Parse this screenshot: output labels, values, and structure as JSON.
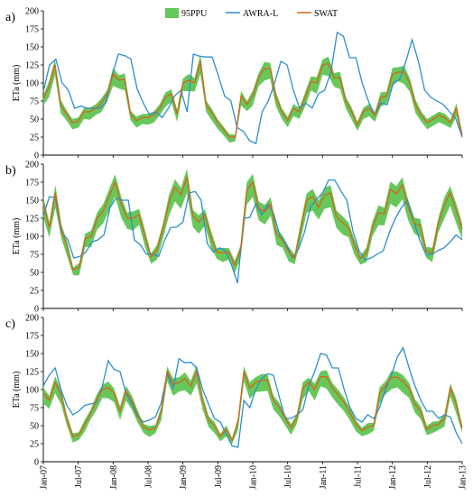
{
  "chart_data": {
    "type": "line",
    "colors": {
      "band": "#66c85a",
      "awra": "#2a8fd0",
      "swat": "#d9631a"
    },
    "legend": {
      "placement": "top-center",
      "entries": [
        {
          "key": "band",
          "label": "95PPU"
        },
        {
          "key": "awra",
          "label": "AWRA-L"
        },
        {
          "key": "swat",
          "label": "SWAT"
        }
      ]
    },
    "x_ticks": [
      "Jan-07",
      "Jul-07",
      "Jan-08",
      "Jul-08",
      "Jan-09",
      "Jul-09",
      "Jan-10",
      "Jul-10",
      "Jan-11",
      "Jul-11",
      "Jan-12",
      "Jul-12",
      "Jan-13"
    ],
    "y_ticks": [
      "0",
      "25",
      "50",
      "75",
      "100",
      "125",
      "150",
      "175",
      "200"
    ],
    "ylim": [
      0,
      200
    ],
    "panels": [
      {
        "label": "a)",
        "ylabel": "ETa (mm)",
        "awra": [
          88,
          125,
          133,
          100,
          90,
          65,
          68,
          65,
          65,
          65,
          73,
          110,
          140,
          138,
          133,
          92,
          72,
          56,
          60,
          52,
          65,
          82,
          90,
          60,
          140,
          137,
          136,
          136,
          110,
          82,
          75,
          38,
          33,
          20,
          16,
          60,
          75,
          100,
          130,
          125,
          90,
          65,
          72,
          65,
          85,
          90,
          115,
          170,
          165,
          135,
          135,
          100,
          75,
          55,
          72,
          70,
          100,
          105,
          130,
          160,
          130,
          90,
          80,
          75,
          70,
          60,
          50,
          25
        ],
        "swat": [
          78,
          95,
          125,
          70,
          57,
          45,
          47,
          60,
          60,
          65,
          72,
          85,
          112,
          104,
          105,
          57,
          48,
          52,
          52,
          55,
          65,
          80,
          85,
          57,
          100,
          104,
          100,
          130,
          70,
          58,
          45,
          35,
          25,
          25,
          82,
          70,
          82,
          107,
          120,
          120,
          80,
          60,
          48,
          65,
          60,
          80,
          102,
          100,
          125,
          127,
          107,
          107,
          75,
          60,
          42,
          60,
          65,
          55,
          80,
          82,
          112,
          115,
          115,
          100,
          70,
          55,
          45,
          50,
          55,
          52,
          45,
          65,
          28
        ]
      },
      {
        "label": "b)",
        "ylabel": "ETa (mm)",
        "awra": [
          128,
          155,
          153,
          105,
          96,
          70,
          72,
          78,
          92,
          95,
          102,
          140,
          153,
          150,
          150,
          95,
          88,
          75,
          76,
          72,
          95,
          112,
          113,
          120,
          160,
          162,
          150,
          90,
          78,
          84,
          80,
          60,
          35,
          125,
          126,
          145,
          130,
          144,
          130,
          100,
          90,
          70,
          81,
          105,
          140,
          151,
          160,
          178,
          178,
          163,
          150,
          107,
          80,
          67,
          70,
          75,
          80,
          105,
          125,
          140,
          150,
          122,
          95,
          75,
          75,
          80,
          84,
          92,
          102,
          95
        ],
        "swat": [
          145,
          112,
          160,
          110,
          85,
          53,
          57,
          97,
          100,
          125,
          135,
          155,
          175,
          145,
          125,
          125,
          130,
          100,
          71,
          81,
          111,
          147,
          168,
          157,
          182,
          128,
          120,
          130,
          100,
          78,
          77,
          78,
          60,
          82,
          164,
          175,
          139,
          134,
          145,
          103,
          95,
          78,
          70,
          110,
          150,
          155,
          140,
          157,
          160,
          127,
          119,
          112,
          88,
          69,
          77,
          113,
          133,
          131,
          165,
          159,
          171,
          140,
          118,
          115,
          80,
          77,
          118,
          143,
          160,
          136,
          110
        ]
      },
      {
        "label": "c)",
        "ylabel": "ETa (mm)",
        "awra": [
          105,
          120,
          130,
          100,
          78,
          65,
          70,
          78,
          80,
          82,
          105,
          140,
          128,
          125,
          95,
          80,
          62,
          55,
          58,
          62,
          82,
          122,
          102,
          143,
          137,
          138,
          130,
          100,
          80,
          60,
          55,
          38,
          22,
          20,
          85,
          75,
          100,
          115,
          122,
          120,
          90,
          60,
          60,
          65,
          72,
          105,
          125,
          150,
          148,
          130,
          130,
          100,
          75,
          60,
          55,
          65,
          60,
          75,
          100,
          120,
          145,
          158,
          130,
          105,
          85,
          70,
          70,
          60,
          65,
          62,
          40,
          25
        ],
        "swat": [
          95,
          85,
          110,
          93,
          60,
          35,
          37,
          52,
          67,
          85,
          100,
          103,
          95,
          70,
          98,
          85,
          65,
          48,
          44,
          47,
          70,
          125,
          107,
          110,
          115,
          105,
          125,
          85,
          58,
          50,
          35,
          45,
          30,
          55,
          125,
          102,
          110,
          113,
          113,
          85,
          75,
          60,
          47,
          62,
          102,
          110,
          100,
          118,
          118,
          102,
          92,
          82,
          68,
          52,
          43,
          48,
          50,
          95,
          105,
          117,
          117,
          111,
          102,
          80,
          70,
          45,
          50,
          52,
          60,
          102,
          80,
          47
        ]
      }
    ]
  }
}
